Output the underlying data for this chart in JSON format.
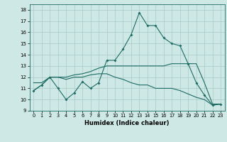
{
  "xlabel": "Humidex (Indice chaleur)",
  "xlim": [
    -0.5,
    23.5
  ],
  "ylim": [
    9,
    18.5
  ],
  "yticks": [
    9,
    10,
    11,
    12,
    13,
    14,
    15,
    16,
    17,
    18
  ],
  "xticks": [
    0,
    1,
    2,
    3,
    4,
    5,
    6,
    7,
    8,
    9,
    10,
    11,
    12,
    13,
    14,
    15,
    16,
    17,
    18,
    19,
    20,
    21,
    22,
    23
  ],
  "background_color": "#cde8e5",
  "grid_color": "#aed0cc",
  "line_color": "#1e6b65",
  "line1_x": [
    0,
    1,
    2,
    3,
    4,
    5,
    6,
    7,
    8,
    9,
    10,
    11,
    12,
    13,
    14,
    15,
    16,
    17,
    18,
    19,
    20,
    21,
    22,
    23
  ],
  "line1_y": [
    10.8,
    11.3,
    12.0,
    11.0,
    10.0,
    10.6,
    11.6,
    11.0,
    11.5,
    13.5,
    13.5,
    14.5,
    15.8,
    17.75,
    16.6,
    16.6,
    15.5,
    15.0,
    14.8,
    13.2,
    11.5,
    10.4,
    9.5,
    9.6
  ],
  "line2_x": [
    0,
    1,
    2,
    3,
    4,
    5,
    6,
    7,
    8,
    9,
    10,
    11,
    12,
    13,
    14,
    15,
    16,
    17,
    18,
    19,
    20,
    21,
    22,
    23
  ],
  "line2_y": [
    11.5,
    11.5,
    12.0,
    12.0,
    12.0,
    12.2,
    12.3,
    12.5,
    12.8,
    13.0,
    13.0,
    13.0,
    13.0,
    13.0,
    13.0,
    13.0,
    13.0,
    13.2,
    13.2,
    13.2,
    13.2,
    11.5,
    9.6,
    9.6
  ],
  "line3_x": [
    0,
    1,
    2,
    3,
    4,
    5,
    6,
    7,
    8,
    9,
    10,
    11,
    12,
    13,
    14,
    15,
    16,
    17,
    18,
    19,
    20,
    21,
    22,
    23
  ],
  "line3_y": [
    10.8,
    11.3,
    12.0,
    12.0,
    11.8,
    12.0,
    12.0,
    12.2,
    12.3,
    12.3,
    12.0,
    11.8,
    11.5,
    11.3,
    11.3,
    11.0,
    11.0,
    11.0,
    10.8,
    10.5,
    10.2,
    10.0,
    9.5,
    9.6
  ]
}
